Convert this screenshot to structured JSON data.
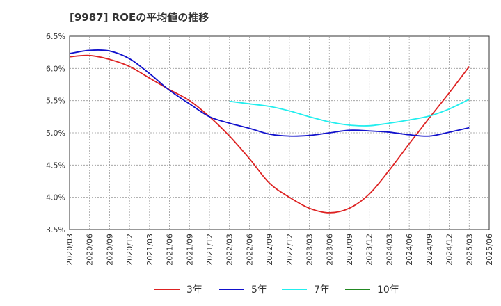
{
  "chart_data": {
    "type": "line",
    "title": "[9987]  ROEの平均値の推移",
    "xlabel": "",
    "ylabel": "",
    "x": [
      "2020/03",
      "2020/06",
      "2020/09",
      "2020/12",
      "2021/03",
      "2021/06",
      "2021/09",
      "2021/12",
      "2022/03",
      "2022/06",
      "2022/09",
      "2022/12",
      "2023/03",
      "2023/06",
      "2023/09",
      "2023/12",
      "2024/03",
      "2024/06",
      "2024/09",
      "2024/12",
      "2025/03",
      "2025/06"
    ],
    "ylim": [
      3.5,
      6.5
    ],
    "yticks": [
      3.5,
      4.0,
      4.5,
      5.0,
      5.5,
      6.0,
      6.5
    ],
    "ytick_labels": [
      "3.5%",
      "4.0%",
      "4.5%",
      "5.0%",
      "5.5%",
      "6.0%",
      "6.5%"
    ],
    "grid": true,
    "legend_position": "bottom",
    "series": [
      {
        "name": "3年",
        "color": "#dd2222",
        "values": [
          6.18,
          6.2,
          6.14,
          6.03,
          5.85,
          5.67,
          5.5,
          5.25,
          4.95,
          4.6,
          4.22,
          4.0,
          3.83,
          3.76,
          3.83,
          4.05,
          4.42,
          4.83,
          5.23,
          5.62,
          6.03,
          null
        ]
      },
      {
        "name": "5年",
        "color": "#1111cc",
        "values": [
          6.23,
          6.28,
          6.27,
          6.15,
          5.92,
          5.66,
          5.45,
          5.25,
          5.15,
          5.07,
          4.98,
          4.95,
          4.96,
          5.0,
          5.04,
          5.03,
          5.01,
          4.97,
          4.95,
          5.01,
          5.08,
          null
        ]
      },
      {
        "name": "7年",
        "color": "#22eeee",
        "values": [
          null,
          null,
          null,
          null,
          null,
          null,
          null,
          null,
          5.49,
          5.45,
          5.41,
          5.34,
          5.25,
          5.17,
          5.12,
          5.11,
          5.15,
          5.2,
          5.26,
          5.37,
          5.52,
          null
        ]
      },
      {
        "name": "10年",
        "color": "#228822",
        "values": [
          null,
          null,
          null,
          null,
          null,
          null,
          null,
          null,
          null,
          null,
          null,
          null,
          null,
          null,
          null,
          null,
          null,
          null,
          null,
          null,
          null,
          null
        ]
      }
    ]
  }
}
